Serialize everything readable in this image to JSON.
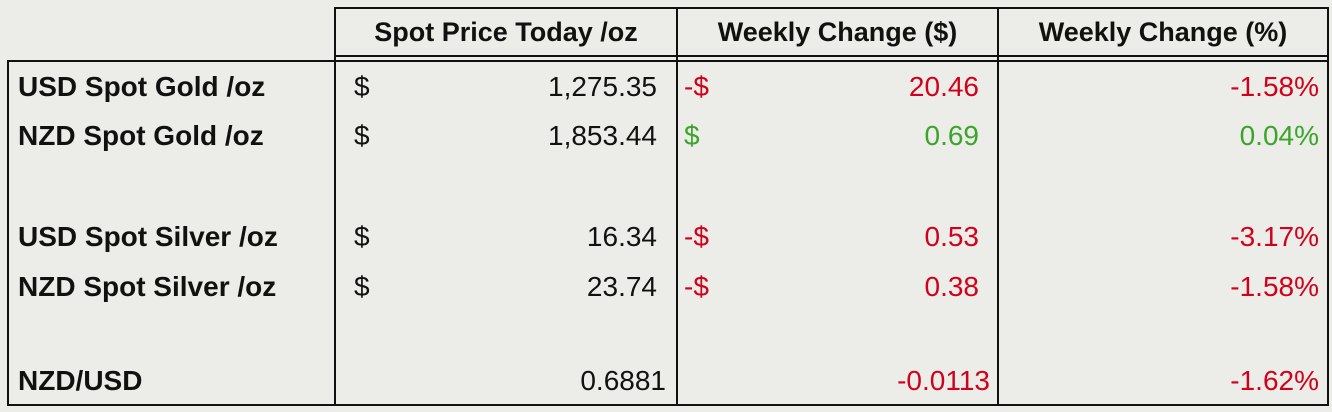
{
  "table": {
    "header": [
      "Spot Price Today /oz",
      "Weekly Change ($)",
      "Weekly Change (%)"
    ],
    "rows": [
      {
        "label": "USD Spot Gold /oz",
        "price_sign": "$",
        "price": "1,275.35",
        "change_sign": "-$",
        "change": "20.46",
        "change_pct": "-1.58%",
        "color": "#d0021b"
      },
      {
        "label": "NZD Spot Gold /oz",
        "price_sign": "$",
        "price": "1,853.44",
        "change_sign": "$",
        "change": "0.69",
        "change_pct": "0.04%",
        "color": "#3aa52a"
      },
      {
        "label": "USD Spot Silver /oz",
        "price_sign": "$",
        "price": "16.34",
        "change_sign": "-$",
        "change": "0.53",
        "change_pct": "-3.17%",
        "color": "#d0021b"
      },
      {
        "label": "NZD Spot Silver /oz",
        "price_sign": "$",
        "price": "23.74",
        "change_sign": "-$",
        "change": "0.38",
        "change_pct": "-1.58%",
        "color": "#d0021b"
      },
      {
        "label": "NZD/USD",
        "price": "0.6881",
        "change": "-0.0113",
        "change_pct": "-1.62%",
        "color": "#d0021b"
      }
    ]
  }
}
